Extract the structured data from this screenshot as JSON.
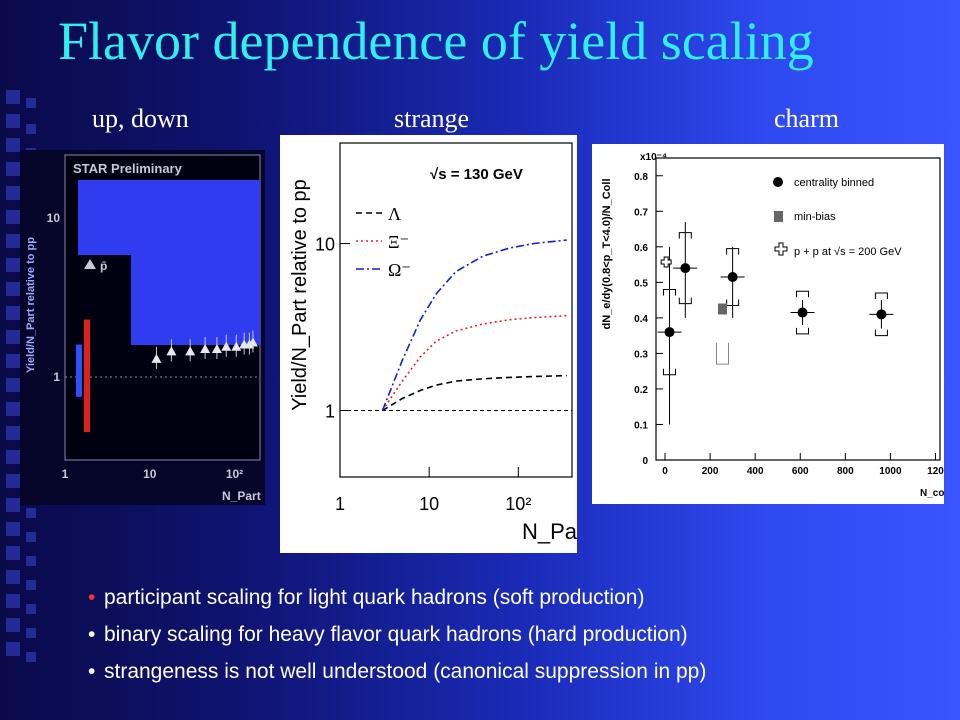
{
  "slide": {
    "title": "Flavor dependence of yield scaling",
    "columns": [
      "up, down",
      "strange",
      "charm"
    ],
    "bullets": [
      "participant scaling for light quark hadrons (soft production)",
      "binary scaling for heavy flavor quark hadrons (hard production)",
      "strangeness is not well understood (canonical suppression in pp)"
    ],
    "bullet_colors": [
      "#ff3030",
      "#ffffff",
      "#ffffff"
    ],
    "title_color": "#2ff0f0"
  },
  "chart_data": [
    {
      "type": "scatter",
      "panel": "up, down",
      "title": "STAR Preliminary",
      "xlabel": "N_Part",
      "ylabel": "Yield/N_Part relative to pp",
      "x_ticks": [
        "1",
        "10",
        "10²"
      ],
      "y_ticks": [
        "1",
        "10"
      ],
      "legend": [
        "p̄"
      ],
      "x_log": true,
      "y_log": true,
      "series": [
        {
          "name": "p̄",
          "x": [
            12,
            18,
            30,
            45,
            62,
            80,
            105,
            130,
            150,
            165
          ],
          "y": [
            1.3,
            1.45,
            1.45,
            1.5,
            1.5,
            1.55,
            1.55,
            1.6,
            1.6,
            1.65
          ]
        }
      ]
    },
    {
      "type": "line",
      "panel": "strange",
      "title": "√s = 130 GeV",
      "xlabel": "N_Part",
      "ylabel": "Yield/N_Part relative to pp",
      "x_ticks": [
        "1",
        "10",
        "10²"
      ],
      "y_ticks": [
        "1",
        "10"
      ],
      "x_log": true,
      "y_log": true,
      "xlim": [
        1,
        400
      ],
      "ylim": [
        0.4,
        40
      ],
      "series": [
        {
          "name": "Λ",
          "color": "#000000",
          "dash": "6,4",
          "x": [
            3,
            5,
            8,
            12,
            20,
            40,
            80,
            150,
            350
          ],
          "y": [
            1.0,
            1.18,
            1.32,
            1.42,
            1.5,
            1.55,
            1.58,
            1.6,
            1.62
          ]
        },
        {
          "name": "Ξ⁻",
          "color": "#e02020",
          "dash": "2,3",
          "x": [
            3,
            5,
            8,
            12,
            20,
            40,
            80,
            150,
            350
          ],
          "y": [
            1.0,
            1.5,
            2.1,
            2.6,
            3.0,
            3.3,
            3.5,
            3.6,
            3.7
          ]
        },
        {
          "name": "Ω⁻",
          "color": "#1020d0",
          "dash": "8,3,2,3",
          "x": [
            3,
            5,
            8,
            12,
            20,
            40,
            80,
            150,
            350
          ],
          "y": [
            1.0,
            2.0,
            3.5,
            5.0,
            6.8,
            8.4,
            9.4,
            10.0,
            10.5
          ]
        }
      ]
    },
    {
      "type": "scatter",
      "panel": "charm",
      "title": "x10⁻⁴",
      "xlabel": "N_coll",
      "ylabel": "dN_e/dy(0.8<p_T<4.0)/N_Coll",
      "x_ticks": [
        "0",
        "200",
        "400",
        "600",
        "800",
        "1000",
        "120"
      ],
      "y_ticks": [
        "0",
        "0.1",
        "0.2",
        "0.3",
        "0.4",
        "0.5",
        "0.6",
        "0.7",
        "0.8"
      ],
      "xlim": [
        -40,
        1220
      ],
      "ylim": [
        0,
        0.85
      ],
      "legend": [
        "centrality binned",
        "min-bias",
        "p + p at √s = 200 GeV"
      ],
      "series": [
        {
          "name": "centrality binned",
          "x": [
            20,
            90,
            300,
            610,
            960
          ],
          "y": [
            0.36,
            0.54,
            0.515,
            0.415,
            0.41
          ]
        },
        {
          "name": "min-bias",
          "x": [
            255
          ],
          "y": [
            0.425
          ]
        },
        {
          "name": "p + p at √s = 200 GeV",
          "x": [
            5
          ],
          "y": [
            0.56
          ]
        }
      ]
    }
  ]
}
